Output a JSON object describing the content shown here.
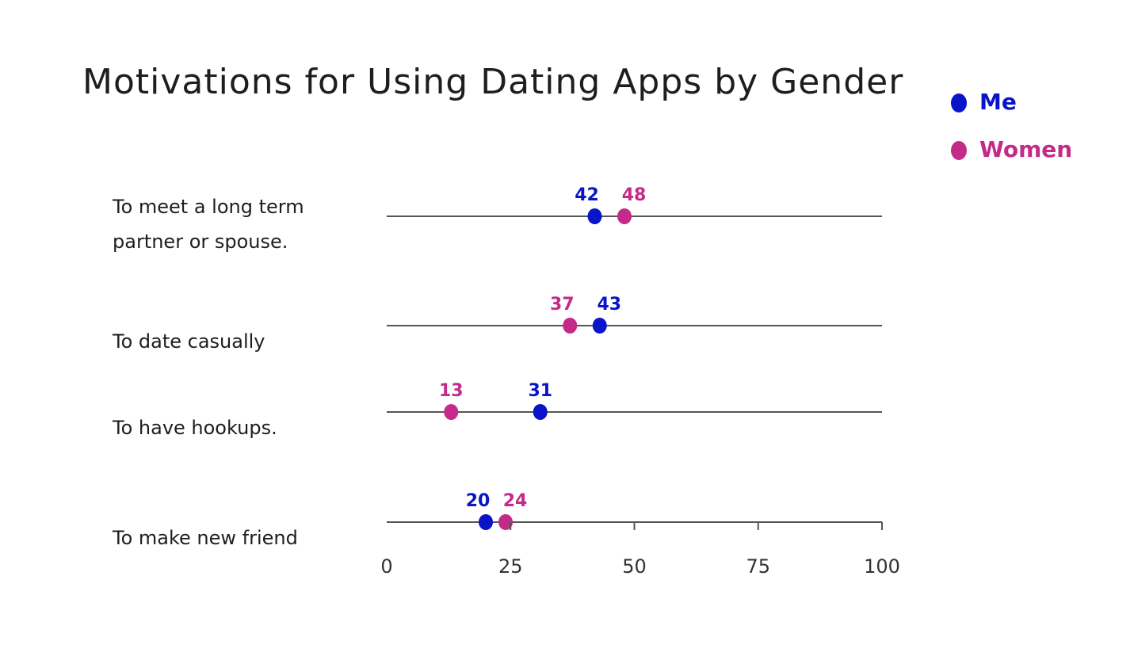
{
  "chart_data": {
    "type": "scatter",
    "title": "Motivations for Using Dating Apps by Gender",
    "categories": [
      [
        "To meet a long term",
        "partner or spouse."
      ],
      [
        "To date casually"
      ],
      [
        "To have hookups."
      ],
      [
        "To make new friend"
      ]
    ],
    "series": [
      {
        "name": "Me",
        "color": "#0a14c8",
        "values": [
          42,
          43,
          31,
          20
        ]
      },
      {
        "name": "Women",
        "color": "#c42a8a",
        "values": [
          48,
          37,
          13,
          24
        ]
      }
    ],
    "xlim": [
      0,
      100
    ],
    "xticks": [
      {
        "value": 0,
        "label": "0"
      },
      {
        "value": 25,
        "label": "25"
      },
      {
        "value": 50,
        "label": "50"
      },
      {
        "value": 75,
        "label": "75"
      },
      {
        "value": 100,
        "label": "100"
      }
    ],
    "legend_position": "top-right",
    "grid": false
  }
}
